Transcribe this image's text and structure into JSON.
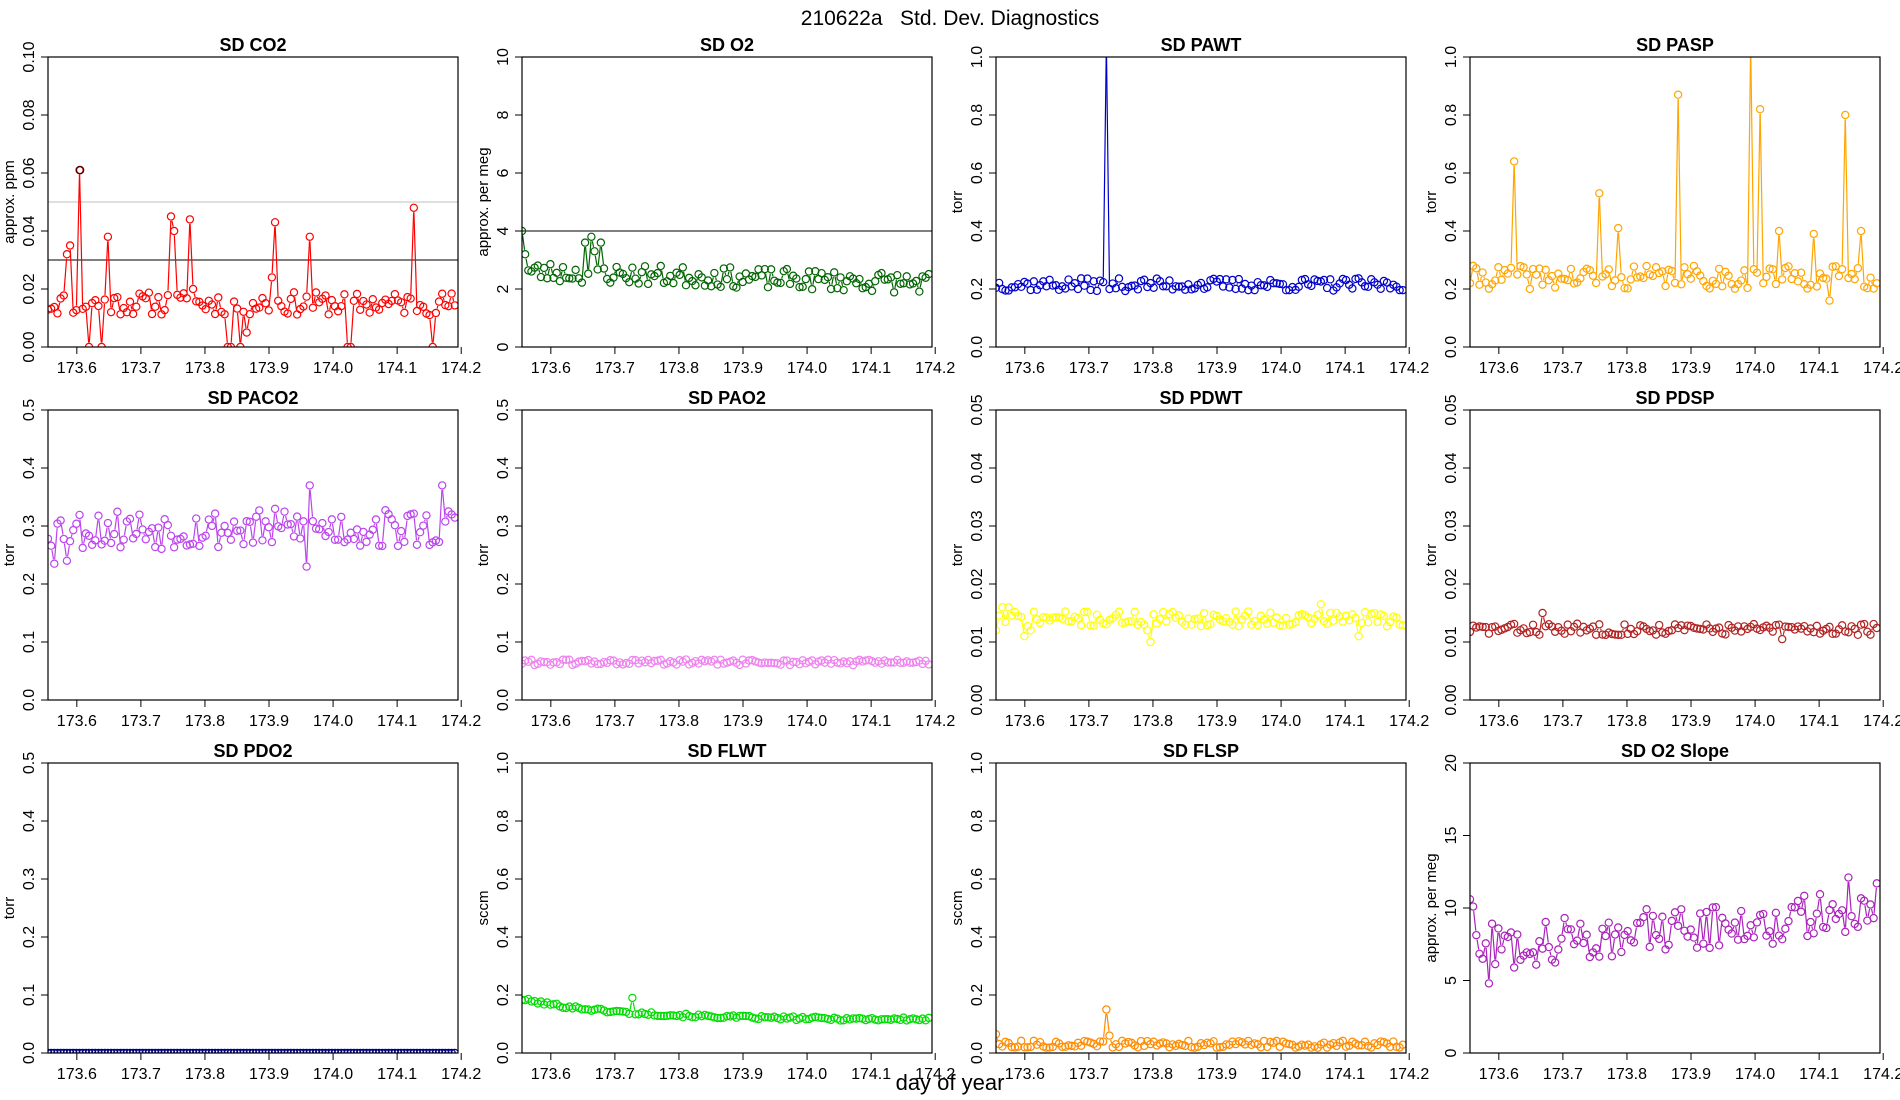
{
  "figure": {
    "title": "210622a   Std. Dev. Diagnostics",
    "xlabel": "day of year"
  },
  "chart_data": [
    {
      "type": "scatter",
      "title": "SD CO2",
      "ylabel": "approx. ppm",
      "color": "#ff0000",
      "xlim": [
        173.555,
        174.195
      ],
      "ylim": [
        0,
        0.1
      ],
      "yticks": [
        0,
        0.02,
        0.04,
        0.06,
        0.08,
        0.1
      ],
      "ytick_labels": [
        "0.00",
        "0.02",
        "0.04",
        "0.06",
        "0.08",
        "0.10"
      ],
      "xticks": [
        173.6,
        173.7,
        173.8,
        173.9,
        174.0,
        174.1,
        174.2
      ],
      "xtick_labels": [
        "173.6",
        "173.7",
        "173.8",
        "173.9",
        "174.0",
        "174.1",
        "174.2"
      ],
      "hlines": [
        {
          "y": 0.03,
          "color": "#333333"
        },
        {
          "y": 0.05,
          "color": "#cccccc"
        }
      ],
      "highlight": {
        "x": 173.605,
        "y": 0.061,
        "color": "#550000"
      },
      "points_style": "circles-with-line",
      "base": 0.015,
      "jitter": 0.004,
      "seed": 11,
      "spikes": [
        [
          173.585,
          0.032
        ],
        [
          173.59,
          0.035
        ],
        [
          173.605,
          0.061
        ],
        [
          173.617,
          0.0
        ],
        [
          173.64,
          0.0
        ],
        [
          173.647,
          0.038
        ],
        [
          173.745,
          0.045
        ],
        [
          173.75,
          0.04
        ],
        [
          173.775,
          0.044
        ],
        [
          173.78,
          0.02
        ],
        [
          173.838,
          0.0
        ],
        [
          173.842,
          0.0
        ],
        [
          173.855,
          0.0
        ],
        [
          173.866,
          0.005
        ],
        [
          173.905,
          0.024
        ],
        [
          173.91,
          0.043
        ],
        [
          173.965,
          0.038
        ],
        [
          174.025,
          0.0
        ],
        [
          174.03,
          0.0
        ],
        [
          174.125,
          0.048
        ],
        [
          174.155,
          0.0
        ]
      ]
    },
    {
      "type": "scatter",
      "title": "SD O2",
      "ylabel": "approx. per meg",
      "color": "#006400",
      "xlim": [
        173.555,
        174.195
      ],
      "ylim": [
        0,
        10
      ],
      "yticks": [
        0,
        2,
        4,
        6,
        8,
        10
      ],
      "ytick_labels": [
        "0",
        "2",
        "4",
        "6",
        "8",
        "10"
      ],
      "xticks": [
        173.6,
        173.7,
        173.8,
        173.9,
        174.0,
        174.1,
        174.2
      ],
      "xtick_labels": [
        "173.6",
        "173.7",
        "173.8",
        "173.9",
        "174.0",
        "174.1",
        "174.2"
      ],
      "hlines": [
        {
          "y": 4,
          "color": "#333333"
        }
      ],
      "points_style": "circles-with-line",
      "base_start": 2.6,
      "base_end": 2.2,
      "jitter": 0.35,
      "seed": 23,
      "spikes": [
        [
          173.555,
          4.0
        ],
        [
          173.56,
          2.8
        ],
        [
          173.56,
          3.2
        ],
        [
          173.655,
          3.6
        ],
        [
          173.665,
          3.8
        ],
        [
          173.68,
          3.6
        ],
        [
          173.67,
          3.3
        ]
      ]
    },
    {
      "type": "scatter",
      "title": "SD PAWT",
      "ylabel": "torr",
      "color": "#0000cc",
      "xlim": [
        173.555,
        174.195
      ],
      "ylim": [
        0,
        1
      ],
      "yticks": [
        0,
        0.2,
        0.4,
        0.6,
        0.8,
        1.0
      ],
      "ytick_labels": [
        "0.0",
        "0.2",
        "0.4",
        "0.6",
        "0.8",
        "1.0"
      ],
      "xticks": [
        173.6,
        173.7,
        173.8,
        173.9,
        174.0,
        174.1,
        174.2
      ],
      "xtick_labels": [
        "173.6",
        "173.7",
        "173.8",
        "173.9",
        "174.0",
        "174.1",
        "174.2"
      ],
      "hlines": [],
      "points_style": "circles-with-line",
      "base": 0.215,
      "jitter": 0.022,
      "seed": 37,
      "spikes": [
        [
          173.725,
          1.05
        ],
        [
          173.73,
          0.2
        ]
      ]
    },
    {
      "type": "scatter",
      "title": "SD PASP",
      "ylabel": "torr",
      "color": "#ffa500",
      "xlim": [
        173.555,
        174.195
      ],
      "ylim": [
        0,
        1
      ],
      "yticks": [
        0,
        0.2,
        0.4,
        0.6,
        0.8,
        1.0
      ],
      "ytick_labels": [
        "0.0",
        "0.2",
        "0.4",
        "0.6",
        "0.8",
        "1.0"
      ],
      "xticks": [
        173.6,
        173.7,
        173.8,
        173.9,
        174.0,
        174.1,
        174.2
      ],
      "xtick_labels": [
        "173.6",
        "173.7",
        "173.8",
        "173.9",
        "174.0",
        "174.1",
        "174.2"
      ],
      "hlines": [],
      "points_style": "circles-with-line",
      "base": 0.24,
      "jitter": 0.04,
      "seed": 41,
      "spikes": [
        [
          173.625,
          0.64
        ],
        [
          173.755,
          0.53
        ],
        [
          173.785,
          0.41
        ],
        [
          173.88,
          0.87
        ],
        [
          173.995,
          1.05
        ],
        [
          174.01,
          0.82
        ],
        [
          174.035,
          0.4
        ],
        [
          174.09,
          0.39
        ],
        [
          174.14,
          0.8
        ],
        [
          174.165,
          0.4
        ],
        [
          174.115,
          0.16
        ]
      ]
    },
    {
      "type": "scatter",
      "title": "SD PACO2",
      "ylabel": "torr",
      "color": "#bb44ee",
      "xlim": [
        173.555,
        174.195
      ],
      "ylim": [
        0,
        0.5
      ],
      "yticks": [
        0,
        0.1,
        0.2,
        0.3,
        0.4,
        0.5
      ],
      "ytick_labels": [
        "0.0",
        "0.1",
        "0.2",
        "0.3",
        "0.4",
        "0.5"
      ],
      "xticks": [
        173.6,
        173.7,
        173.8,
        173.9,
        174.0,
        174.1,
        174.2
      ],
      "xtick_labels": [
        "173.6",
        "173.7",
        "173.8",
        "173.9",
        "174.0",
        "174.1",
        "174.2"
      ],
      "hlines": [],
      "points_style": "circles-with-line",
      "base": 0.295,
      "jitter": 0.035,
      "seed": 53,
      "spikes": [
        [
          173.565,
          0.235
        ],
        [
          173.585,
          0.24
        ],
        [
          173.96,
          0.23
        ],
        [
          173.965,
          0.37
        ],
        [
          174.17,
          0.37
        ]
      ]
    },
    {
      "type": "scatter",
      "title": "SD PAO2",
      "ylabel": "torr",
      "color": "#ee82ee",
      "xlim": [
        173.555,
        174.195
      ],
      "ylim": [
        0,
        0.5
      ],
      "yticks": [
        0,
        0.1,
        0.2,
        0.3,
        0.4,
        0.5
      ],
      "ytick_labels": [
        "0.0",
        "0.1",
        "0.2",
        "0.3",
        "0.4",
        "0.5"
      ],
      "xticks": [
        173.6,
        173.7,
        173.8,
        173.9,
        174.0,
        174.1,
        174.2
      ],
      "xtick_labels": [
        "173.6",
        "173.7",
        "173.8",
        "173.9",
        "174.0",
        "174.1",
        "174.2"
      ],
      "hlines": [],
      "points_style": "circles-with-line",
      "base": 0.065,
      "jitter": 0.005,
      "seed": 61,
      "spikes": []
    },
    {
      "type": "scatter",
      "title": "SD PDWT",
      "ylabel": "torr",
      "color": "#ffff00",
      "xlim": [
        173.555,
        174.195
      ],
      "ylim": [
        0,
        0.05
      ],
      "yticks": [
        0,
        0.01,
        0.02,
        0.03,
        0.04,
        0.05
      ],
      "ytick_labels": [
        "0.00",
        "0.01",
        "0.02",
        "0.03",
        "0.04",
        "0.05"
      ],
      "xticks": [
        173.6,
        173.7,
        173.8,
        173.9,
        174.0,
        174.1,
        174.2
      ],
      "xtick_labels": [
        "173.6",
        "173.7",
        "173.8",
        "173.9",
        "174.0",
        "174.1",
        "174.2"
      ],
      "hlines": [],
      "points_style": "circles-with-line",
      "base": 0.014,
      "jitter": 0.0013,
      "seed": 71,
      "spikes": [
        [
          173.555,
          0.012
        ],
        [
          173.565,
          0.016
        ],
        [
          173.575,
          0.016
        ],
        [
          173.6,
          0.011
        ],
        [
          173.61,
          0.012
        ],
        [
          173.795,
          0.01
        ],
        [
          173.79,
          0.012
        ],
        [
          174.06,
          0.0165
        ],
        [
          174.12,
          0.011
        ]
      ]
    },
    {
      "type": "scatter",
      "title": "SD PDSP",
      "ylabel": "torr",
      "color": "#b22222",
      "xlim": [
        173.555,
        174.195
      ],
      "ylim": [
        0,
        0.05
      ],
      "yticks": [
        0,
        0.01,
        0.02,
        0.03,
        0.04,
        0.05
      ],
      "ytick_labels": [
        "0.00",
        "0.01",
        "0.02",
        "0.03",
        "0.04",
        "0.05"
      ],
      "xticks": [
        173.6,
        173.7,
        173.8,
        173.9,
        174.0,
        174.1,
        174.2
      ],
      "xtick_labels": [
        "173.6",
        "173.7",
        "173.8",
        "173.9",
        "174.0",
        "174.1",
        "174.2"
      ],
      "hlines": [],
      "points_style": "circles-with-line",
      "base": 0.0122,
      "jitter": 0.001,
      "seed": 83,
      "spikes": [
        [
          173.67,
          0.015
        ],
        [
          174.04,
          0.0105
        ]
      ]
    },
    {
      "type": "scatter",
      "title": "SD PDO2",
      "ylabel": "torr",
      "color": "#00008b",
      "xlim": [
        173.555,
        174.195
      ],
      "ylim": [
        0,
        0.5
      ],
      "yticks": [
        0,
        0.1,
        0.2,
        0.3,
        0.4,
        0.5
      ],
      "ytick_labels": [
        "0.0",
        "0.1",
        "0.2",
        "0.3",
        "0.4",
        "0.5"
      ],
      "xticks": [
        173.6,
        173.7,
        173.8,
        173.9,
        174.0,
        174.1,
        174.2
      ],
      "xtick_labels": [
        "173.6",
        "173.7",
        "173.8",
        "173.9",
        "174.0",
        "174.1",
        "174.2"
      ],
      "hlines": [],
      "points_style": "circles-with-line",
      "base": 0.0,
      "jitter": 0.0,
      "seed": 97,
      "spikes": []
    },
    {
      "type": "scatter",
      "title": "SD FLWT",
      "ylabel": "sccm",
      "color": "#00dd00",
      "xlim": [
        173.555,
        174.195
      ],
      "ylim": [
        0,
        1
      ],
      "yticks": [
        0,
        0.2,
        0.4,
        0.6,
        0.8,
        1.0
      ],
      "ytick_labels": [
        "0.0",
        "0.2",
        "0.4",
        "0.6",
        "0.8",
        "1.0"
      ],
      "xticks": [
        173.6,
        173.7,
        173.8,
        173.9,
        174.0,
        174.1,
        174.2
      ],
      "xtick_labels": [
        "173.6",
        "173.7",
        "173.8",
        "173.9",
        "174.0",
        "174.1",
        "174.2"
      ],
      "hlines": [],
      "points_style": "circles-with-line",
      "base_start": 0.185,
      "base_end": 0.115,
      "decay": true,
      "jitter": 0.006,
      "seed": 101,
      "spikes": [
        [
          173.725,
          0.19
        ]
      ]
    },
    {
      "type": "scatter",
      "title": "SD FLSP",
      "ylabel": "sccm",
      "color": "#ff8c00",
      "xlim": [
        173.555,
        174.195
      ],
      "ylim": [
        0,
        1
      ],
      "yticks": [
        0,
        0.2,
        0.4,
        0.6,
        0.8,
        1.0
      ],
      "ytick_labels": [
        "0.0",
        "0.2",
        "0.4",
        "0.6",
        "0.8",
        "1.0"
      ],
      "xticks": [
        173.6,
        173.7,
        173.8,
        173.9,
        174.0,
        174.1,
        174.2
      ],
      "xtick_labels": [
        "173.6",
        "173.7",
        "173.8",
        "173.9",
        "174.0",
        "174.1",
        "174.2"
      ],
      "hlines": [],
      "points_style": "circles-with-line",
      "base": 0.03,
      "jitter": 0.012,
      "seed": 113,
      "spikes": [
        [
          173.555,
          0.065
        ],
        [
          173.725,
          0.15
        ],
        [
          173.73,
          0.06
        ]
      ]
    },
    {
      "type": "scatter",
      "title": "SD O2 Slope",
      "ylabel": "approx. per meg",
      "color": "#aa22bb",
      "xlim": [
        173.555,
        174.195
      ],
      "ylim": [
        0,
        20
      ],
      "yticks": [
        0,
        5,
        10,
        15,
        20
      ],
      "ytick_labels": [
        "0",
        "5",
        "10",
        "15",
        "20"
      ],
      "xticks": [
        173.6,
        173.7,
        173.8,
        173.9,
        174.0,
        174.1,
        174.2
      ],
      "xtick_labels": [
        "173.6",
        "173.7",
        "173.8",
        "173.9",
        "174.0",
        "174.1",
        "174.2"
      ],
      "hlines": [],
      "points_style": "circles-with-line",
      "base_start": 7.2,
      "base_end": 9.8,
      "jitter": 1.6,
      "seed": 127,
      "spikes": [
        [
          173.555,
          10.6
        ],
        [
          173.56,
          10.1
        ],
        [
          173.575,
          6.5
        ],
        [
          173.585,
          4.8
        ],
        [
          174.145,
          12.1
        ],
        [
          174.19,
          11.7
        ]
      ]
    }
  ]
}
